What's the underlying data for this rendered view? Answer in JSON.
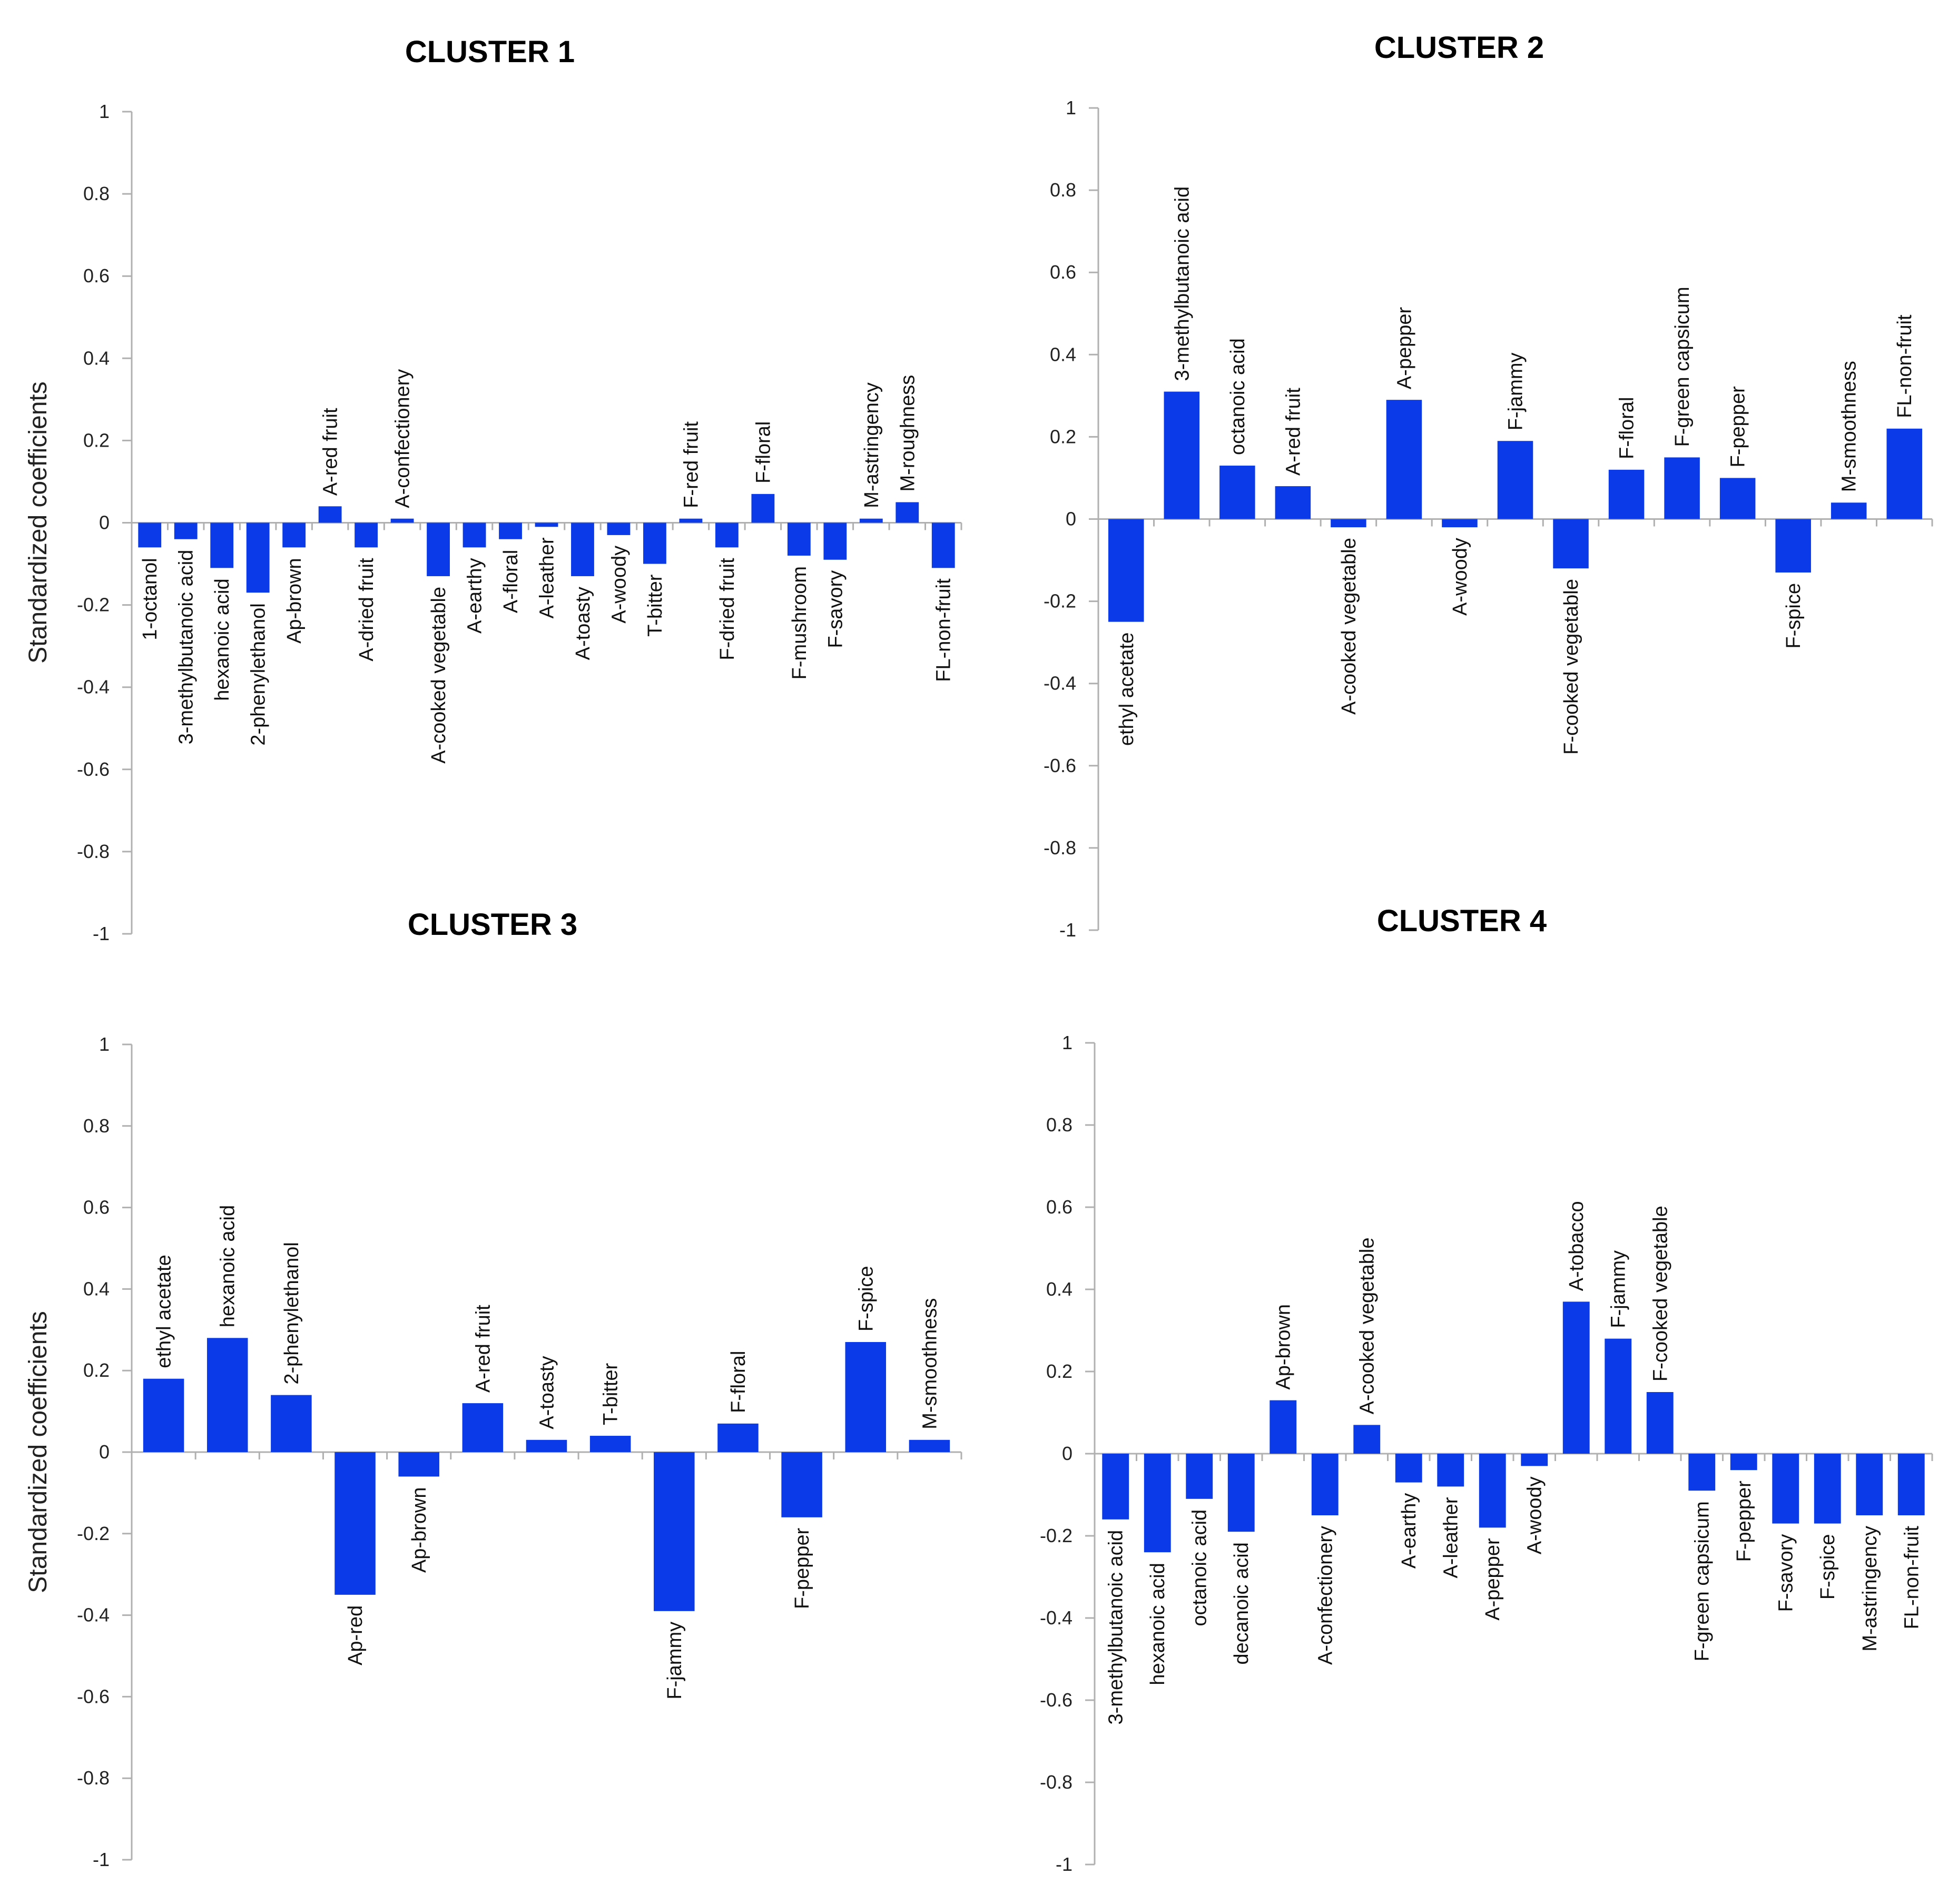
{
  "chart_data": [
    {
      "type": "bar",
      "title": "CLUSTER 1",
      "ylabel": "Standardized coefficients",
      "ylim": [
        -1,
        1
      ],
      "yticks": [
        "1",
        "0.8",
        "0.6",
        "0.4",
        "0.2",
        "0",
        "-0.2",
        "-0.4",
        "-0.6",
        "-0.8",
        "-1"
      ],
      "categories": [
        "1-octanol",
        "3-methylbutanoic acid",
        "hexanoic acid",
        "2-phenylethanol",
        "Ap-brown",
        "A-red fruit",
        "A-dried fruit",
        "A-confectionery",
        "A-cooked vegetable",
        "A-earthy",
        "A-floral",
        "A-leather",
        "A-toasty",
        "A-woody",
        "T-bitter",
        "F-red fruit",
        "F-dried fruit",
        "F-floral",
        "F-mushroom",
        "F-savory",
        "M-astringency",
        "M-roughness",
        "FL-non-fruit"
      ],
      "values": [
        -0.06,
        -0.04,
        -0.11,
        -0.17,
        -0.06,
        0.04,
        -0.06,
        0.01,
        -0.13,
        -0.06,
        -0.04,
        -0.01,
        -0.13,
        -0.03,
        -0.1,
        0.01,
        -0.06,
        0.07,
        -0.08,
        -0.09,
        0.01,
        0.05,
        -0.11
      ]
    },
    {
      "type": "bar",
      "title": "CLUSTER 2",
      "ylabel": "",
      "ylim": [
        -1,
        1
      ],
      "yticks": [
        "1",
        "0.8",
        "0.6",
        "0.4",
        "0.2",
        "0",
        "-0.2",
        "-0.4",
        "-0.6",
        "-0.8",
        "-1"
      ],
      "categories": [
        "ethyl acetate",
        "3-methylbutanoic acid",
        "octanoic acid",
        "A-red fruit",
        "A-cooked vegetable",
        "A-pepper",
        "A-woody",
        "F-jammy",
        "F-cooked vegetable",
        "F-floral",
        "F-green capsicum",
        "F-pepper",
        "F-spice",
        "M-smoothness",
        "FL-non-fruit"
      ],
      "values": [
        -0.25,
        0.31,
        0.13,
        0.08,
        -0.02,
        0.29,
        -0.02,
        0.19,
        -0.12,
        0.12,
        0.15,
        0.1,
        -0.13,
        0.04,
        0.22
      ]
    },
    {
      "type": "bar",
      "title": "CLUSTER 3",
      "ylabel": "Standardized coefficients",
      "ylim": [
        -1,
        1
      ],
      "yticks": [
        "1",
        "0.8",
        "0.6",
        "0.4",
        "0.2",
        "0",
        "-0.2",
        "-0.4",
        "-0.6",
        "-0.8",
        "-1"
      ],
      "categories": [
        "ethyl acetate",
        "hexanoic acid",
        "2-phenylethanol",
        "Ap-red",
        "Ap-brown",
        "A-red fruit",
        "A-toasty",
        "T-bitter",
        "F-jammy",
        "F-floral",
        "F-pepper",
        "F-spice",
        "M-smoothness"
      ],
      "values": [
        0.18,
        0.28,
        0.14,
        -0.35,
        -0.06,
        0.12,
        0.03,
        0.04,
        -0.39,
        0.07,
        -0.16,
        0.27,
        0.03
      ]
    },
    {
      "type": "bar",
      "title": "CLUSTER 4",
      "ylabel": "",
      "ylim": [
        -1,
        1
      ],
      "yticks": [
        "1",
        "0.8",
        "0.6",
        "0.4",
        "0.2",
        "0",
        "-0.2",
        "-0.4",
        "-0.6",
        "-0.8",
        "-1"
      ],
      "categories": [
        "3-methylbutanoic acid",
        "hexanoic acid",
        "octanoic acid",
        "decanoic acid",
        "Ap-brown",
        "A-confectionery",
        "A-cooked vegetable",
        "A-earthy",
        "A-leather",
        "A-pepper",
        "A-woody",
        "A-tobacco",
        "F-jammy",
        "F-cooked vegetable",
        "F-green capsicum",
        "F-pepper",
        "F-savory",
        "F-spice",
        "M-astringency",
        "FL-non-fruit"
      ],
      "values": [
        -0.16,
        -0.24,
        -0.11,
        -0.19,
        0.13,
        -0.15,
        0.07,
        -0.07,
        -0.08,
        -0.18,
        -0.03,
        0.37,
        0.28,
        0.15,
        -0.09,
        -0.04,
        -0.17,
        -0.17,
        -0.15,
        -0.15
      ]
    }
  ]
}
